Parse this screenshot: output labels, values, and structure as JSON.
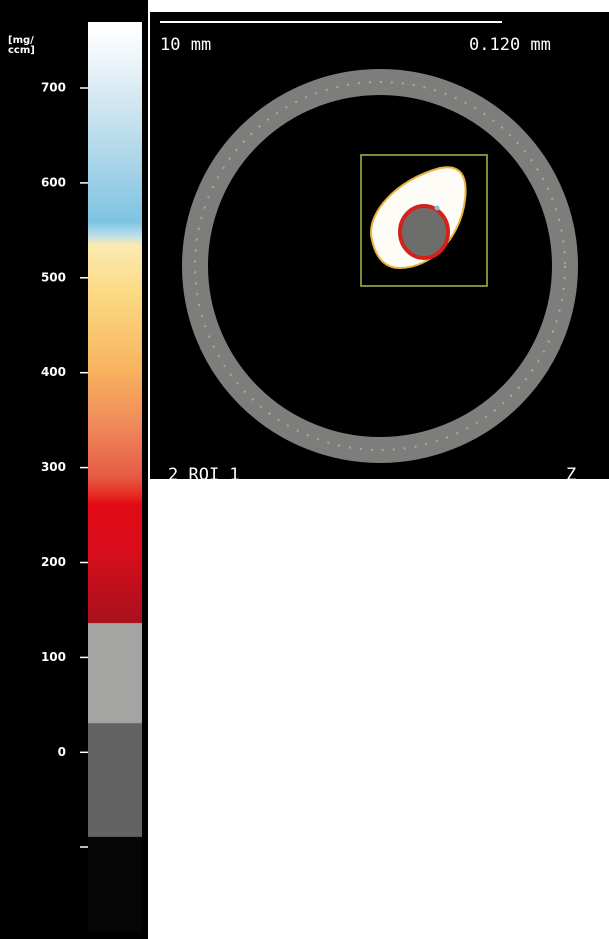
{
  "colorbar": {
    "unit_lines": [
      "[mg/",
      "ccm]"
    ],
    "ticks": [
      "700",
      "600",
      "500",
      "400",
      "300",
      "200",
      "100",
      "0"
    ]
  },
  "image": {
    "scale_label": "10 mm",
    "pixel_size": "0.120 mm",
    "roi_label": "2  ROI 1",
    "axis_label": "Z"
  }
}
